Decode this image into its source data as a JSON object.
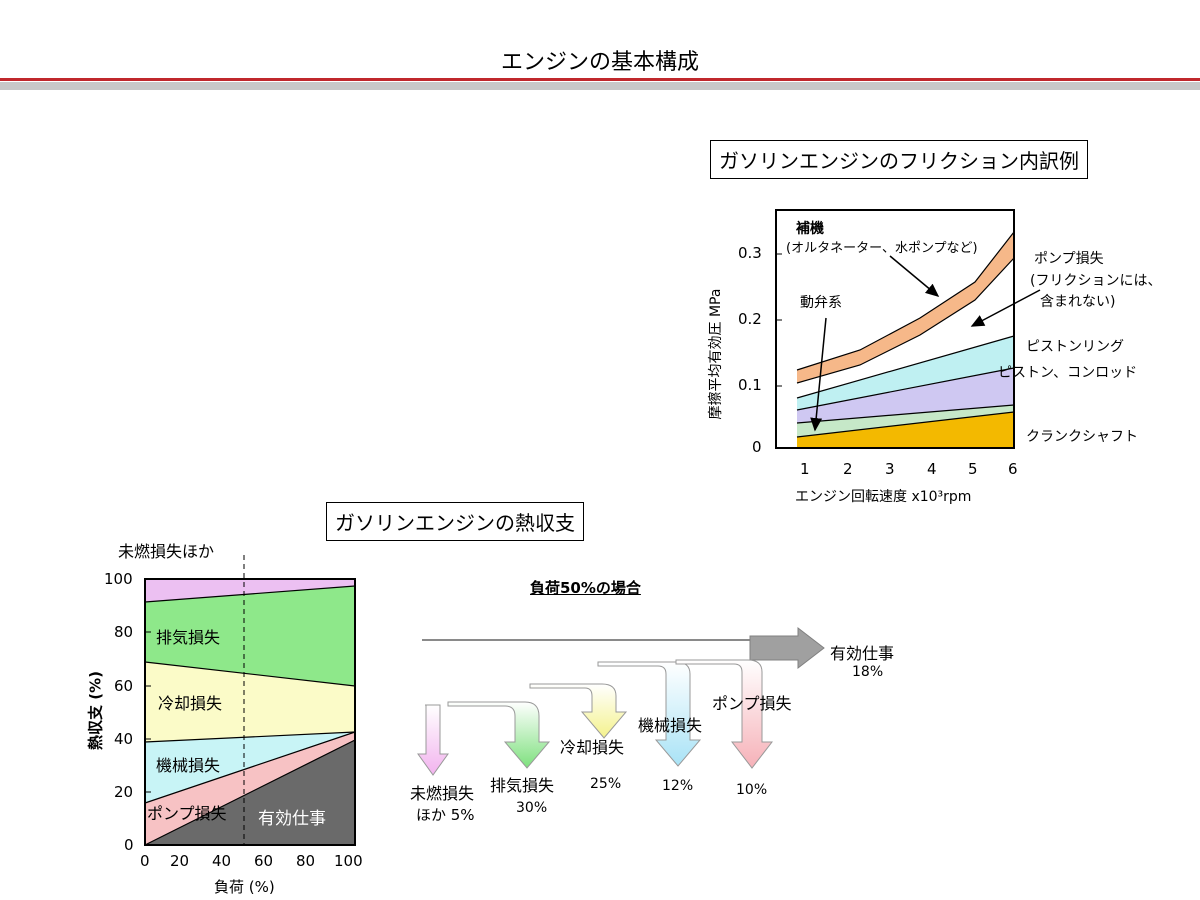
{
  "page": {
    "title": "エンジンの基本構成"
  },
  "friction": {
    "title": "ガソリンエンジンのフリクション内訳例",
    "ylabel": "摩擦平均有効圧 MPa",
    "xlabel": "エンジン回転速度 x10³rpm",
    "yticks": [
      "0",
      "0.1",
      "0.2",
      "0.3"
    ],
    "xticks": [
      "1",
      "2",
      "3",
      "4",
      "5",
      "6"
    ],
    "ann_hoki_1": "補機",
    "ann_hoki_2": "(オルタネーター、水ポンプなど)",
    "ann_pump_1": "ポンプ損失",
    "ann_pump_2": "(フリクションには、",
    "ann_pump_3": "含まれない)",
    "ann_valve": "動弁系",
    "ann_ring": "ピストンリング",
    "ann_piston": "ピストン、コンロッド",
    "ann_crank": "クランクシャフト"
  },
  "heat": {
    "title": "ガソリンエンジンの熱収支",
    "ylabel": "熱収支 (%)",
    "xlabel": "負荷 (%)",
    "yticks": [
      "0",
      "20",
      "40",
      "60",
      "80",
      "100"
    ],
    "xticks": [
      "0",
      "20",
      "40",
      "60",
      "80",
      "100"
    ],
    "unburned": "未燃損失ほか",
    "exhaust": "排気損失",
    "cooling": "冷却損失",
    "mechanical": "機械損失",
    "pump": "ポンプ損失",
    "effective": "有効仕事"
  },
  "flow": {
    "title": "負荷50%の場合",
    "effective_label": "有効仕事",
    "effective_value": "18%",
    "items": [
      {
        "label1": "未燃損失",
        "label2": "ほか 5%",
        "value": "",
        "color": "#f2b3ee"
      },
      {
        "label1": "排気損失",
        "label2": "",
        "value": "30%",
        "color": "#7de07d"
      },
      {
        "label1": "冷却損失",
        "label2": "",
        "value": "25%",
        "color": "#f4f28c"
      },
      {
        "label1": "機械損失",
        "label2": "",
        "value": "12%",
        "color": "#a9e3f6"
      },
      {
        "label1": "ポンプ損失",
        "label2": "",
        "value": "10%",
        "color": "#f6b1b8"
      }
    ]
  }
}
